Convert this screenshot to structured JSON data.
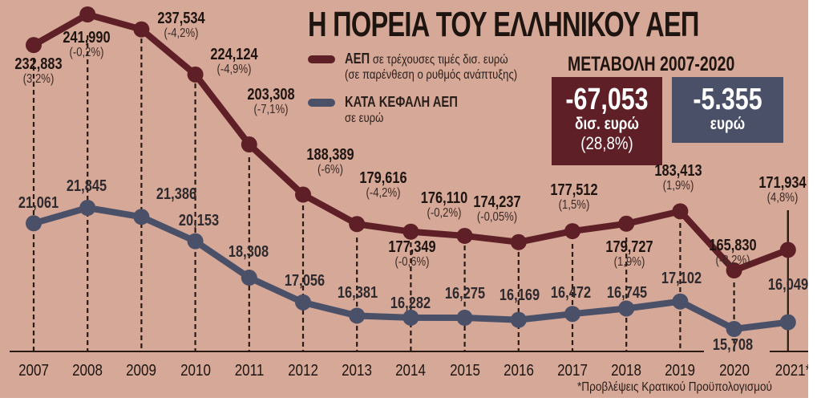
{
  "title": "Η ΠΟΡΕΙΑ ΤΟΥ ΕΛΛΗΝΙΚΟΥ ΑΕΠ",
  "legend": {
    "gdp": {
      "bold": "ΑΕΠ",
      "text": "σε τρέχουσες τιμές δισ. ευρώ",
      "subtext": "(σε παρένθεση ο ρυθμός ανάπτυξης)",
      "color": "#5e1f26"
    },
    "per_capita": {
      "bold": "ΚΑΤΑ ΚΕΦΑΛΗ ΑΕΠ",
      "subtext": "σε ευρώ",
      "color": "#4a5068"
    }
  },
  "change": {
    "title": "ΜΕΤΑΒΟΛΗ 2007-2020",
    "gdp_box": {
      "value": "-67,053",
      "unit": "δισ. ευρώ",
      "pct": "(28,8%)",
      "color": "#5e1f26"
    },
    "per_capita_box": {
      "value": "-5.355",
      "unit": "ευρώ",
      "color": "#4a5068"
    }
  },
  "footnote": "*Προβλέψεις Κρατικού Προϋπολογισμού",
  "years": [
    "2007",
    "2008",
    "2009",
    "2010",
    "2011",
    "2012",
    "2013",
    "2014",
    "2015",
    "2016",
    "2017",
    "2018",
    "2019",
    "2020",
    "2021*"
  ],
  "gdp_labels": [
    {
      "v": "232,883",
      "p": "(3,2%)"
    },
    {
      "v": "241,990",
      "p": "(-0,2%)"
    },
    {
      "v": "237,534",
      "p": "(-4,2%)"
    },
    {
      "v": "224,124",
      "p": "(-4,9%)"
    },
    {
      "v": "203,308",
      "p": "(-7,1%)"
    },
    {
      "v": "188,389",
      "p": "(-6%)"
    },
    {
      "v": "179,616",
      "p": "(-4,2%)"
    },
    {
      "v": "177,349",
      "p": "(-0,6%)"
    },
    {
      "v": "176,110",
      "p": "(-0,2%)"
    },
    {
      "v": "174,237",
      "p": "(-0,05%)"
    },
    {
      "v": "177,512",
      "p": "(1,5%)"
    },
    {
      "v": "179,727",
      "p": "(1,9%)"
    },
    {
      "v": "183,413",
      "p": "(1,9%)"
    },
    {
      "v": "165,830",
      "p": "(-8,2%)"
    },
    {
      "v": "171,934",
      "p": "(4,8%)"
    }
  ],
  "per_capita_labels": [
    "21,061",
    "21,845",
    "21,386",
    "20,153",
    "18,308",
    "17,056",
    "16,381",
    "16,282",
    "16,275",
    "16,169",
    "16,472",
    "16,745",
    "17,102",
    "15,708",
    "16,049"
  ],
  "chart_data": {
    "type": "line",
    "title": "Η ΠΟΡΕΙΑ ΤΟΥ ΕΛΛΗΝΙΚΟΥ ΑΕΠ",
    "x": [
      "2007",
      "2008",
      "2009",
      "2010",
      "2011",
      "2012",
      "2013",
      "2014",
      "2015",
      "2016",
      "2017",
      "2018",
      "2019",
      "2020",
      "2021*"
    ],
    "series": [
      {
        "name": "ΑΕΠ σε τρέχουσες τιμές δισ. ευρώ",
        "color": "#5e1f26",
        "values": [
          232.883,
          241.99,
          237.534,
          224.124,
          203.308,
          188.389,
          179.616,
          177.349,
          176.11,
          174.237,
          177.512,
          179.727,
          183.413,
          165.83,
          171.934
        ],
        "growth_pct": [
          3.2,
          -0.2,
          -4.2,
          -4.9,
          -7.1,
          -6,
          -4.2,
          -0.6,
          -0.2,
          -0.05,
          1.5,
          1.9,
          1.9,
          -8.2,
          4.8
        ]
      },
      {
        "name": "ΚΑΤΑ ΚΕΦΑΛΗ ΑΕΠ σε ευρώ",
        "color": "#4a5068",
        "values": [
          21061,
          21845,
          21386,
          20153,
          18308,
          17056,
          16381,
          16282,
          16275,
          16169,
          16472,
          16745,
          17102,
          15708,
          16049
        ]
      }
    ],
    "annotations": [
      "ΜΕΤΑΒΟΛΗ 2007-2020: -67,053 δισ. ευρώ (28,8%)",
      "ΜΕΤΑΒΟΛΗ 2007-2020: -5.355 ευρώ",
      "*Προβλέψεις Κρατικού Προϋπολογισμού"
    ],
    "xlabel": "",
    "ylabel": "",
    "grid": "dashed vertical drop lines per year",
    "legend_position": "top-center"
  }
}
